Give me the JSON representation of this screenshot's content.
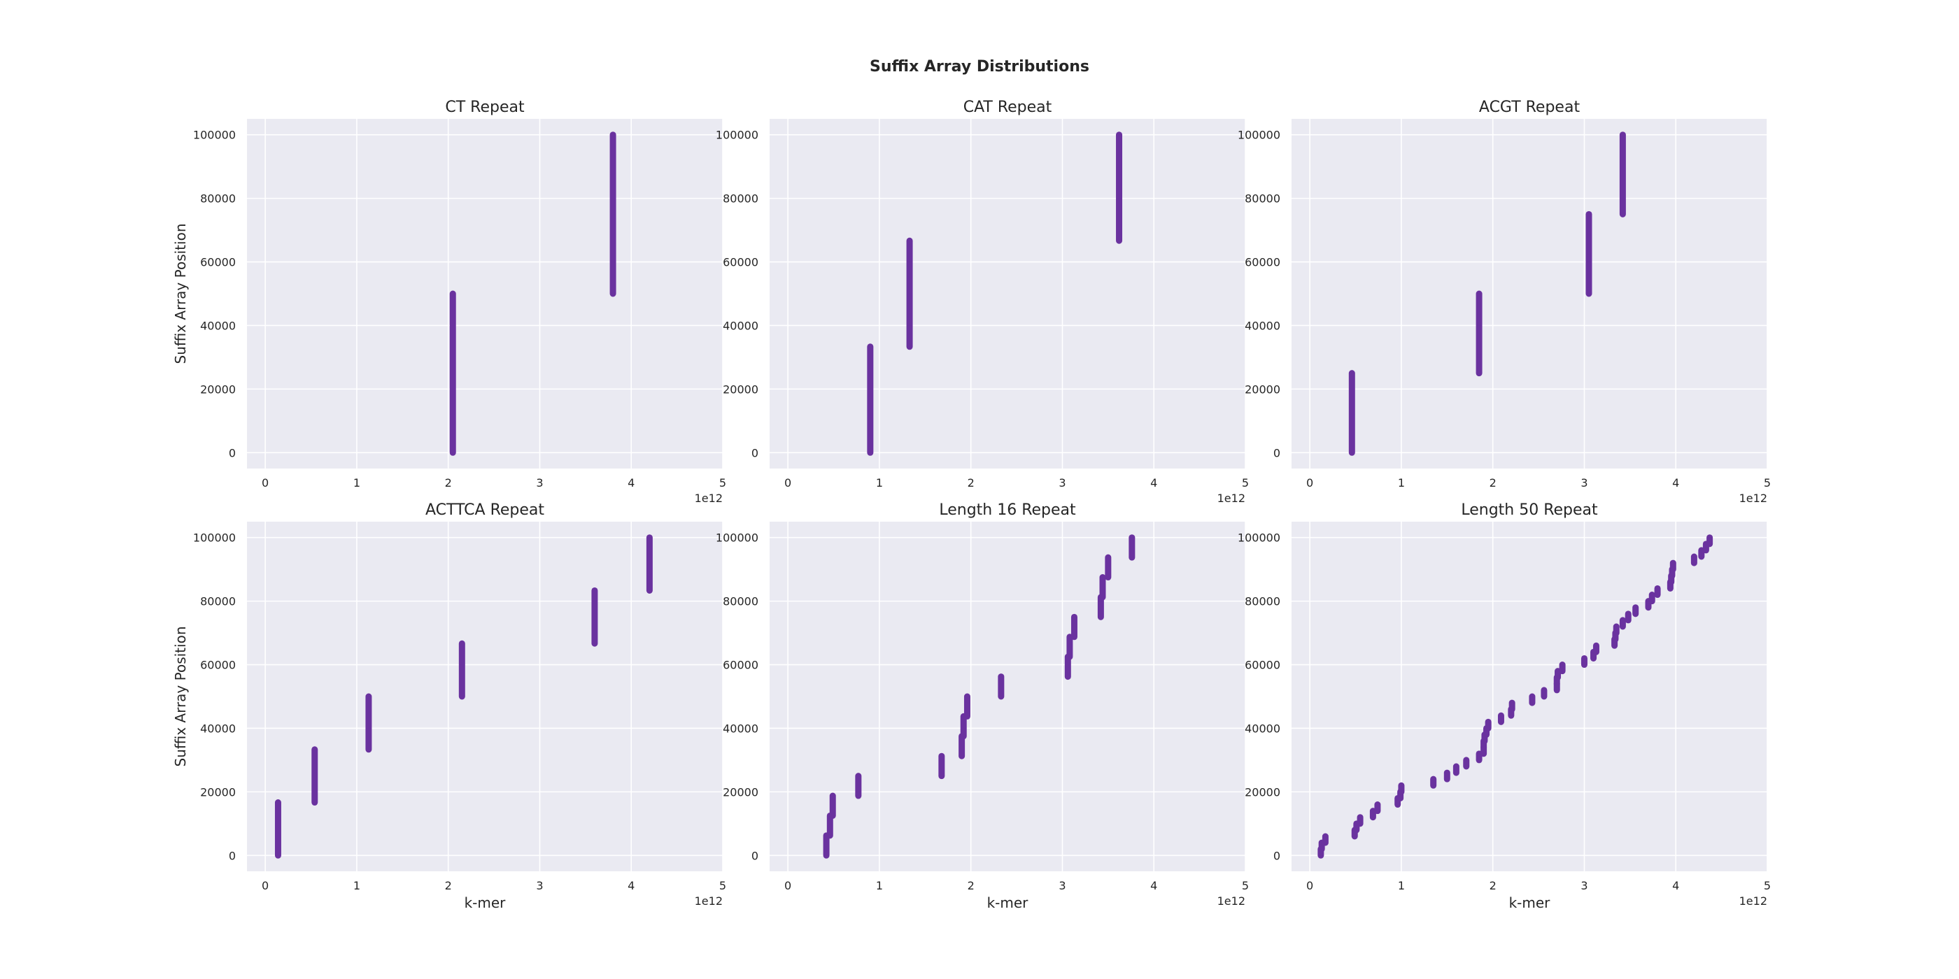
{
  "suptitle": "Suffix Array Distributions",
  "style": {
    "panel_bg": "#EAEAF2",
    "grid_color": "#FFFFFF",
    "mark_color": "#6A329F",
    "text_color": "#262626"
  },
  "chart_data": [
    {
      "type": "scatter",
      "title": "CT Repeat",
      "xlabel": "",
      "ylabel": "Suffix Array Position",
      "xlim": [
        -0.2,
        5
      ],
      "ylim": [
        -5000,
        105000
      ],
      "xticks": [
        "0",
        "1",
        "2",
        "3",
        "4",
        "5"
      ],
      "yticks": [
        "0",
        "20000",
        "40000",
        "60000",
        "80000",
        "100000"
      ],
      "x_offset": "1e12",
      "grid": true,
      "segments": [
        {
          "x": 2.05,
          "y": [
            0,
            50000
          ]
        },
        {
          "x": 3.8,
          "y": [
            50000,
            100000
          ]
        }
      ]
    },
    {
      "type": "scatter",
      "title": "CAT Repeat",
      "xlabel": "",
      "ylabel": "",
      "xlim": [
        -0.2,
        5
      ],
      "ylim": [
        -5000,
        105000
      ],
      "xticks": [
        "0",
        "1",
        "2",
        "3",
        "4",
        "5"
      ],
      "yticks": [
        "0",
        "20000",
        "40000",
        "60000",
        "80000",
        "100000"
      ],
      "x_offset": "1e12",
      "grid": true,
      "segments": [
        {
          "x": 0.9,
          "y": [
            0,
            33333
          ]
        },
        {
          "x": 1.33,
          "y": [
            33333,
            66666
          ]
        },
        {
          "x": 3.62,
          "y": [
            66666,
            100000
          ]
        }
      ]
    },
    {
      "type": "scatter",
      "title": "ACGT Repeat",
      "xlabel": "",
      "ylabel": "",
      "xlim": [
        -0.2,
        5
      ],
      "ylim": [
        -5000,
        105000
      ],
      "xticks": [
        "0",
        "1",
        "2",
        "3",
        "4",
        "5"
      ],
      "yticks": [
        "0",
        "20000",
        "40000",
        "60000",
        "80000",
        "100000"
      ],
      "x_offset": "1e12",
      "grid": true,
      "segments": [
        {
          "x": 0.46,
          "y": [
            0,
            25000
          ]
        },
        {
          "x": 1.85,
          "y": [
            25000,
            50000
          ]
        },
        {
          "x": 3.05,
          "y": [
            50000,
            75000
          ]
        },
        {
          "x": 3.42,
          "y": [
            75000,
            100000
          ]
        }
      ]
    },
    {
      "type": "scatter",
      "title": "ACTTCA Repeat",
      "xlabel": "k-mer",
      "ylabel": "Suffix Array Position",
      "xlim": [
        -0.2,
        5
      ],
      "ylim": [
        -5000,
        105000
      ],
      "xticks": [
        "0",
        "1",
        "2",
        "3",
        "4",
        "5"
      ],
      "yticks": [
        "0",
        "20000",
        "40000",
        "60000",
        "80000",
        "100000"
      ],
      "x_offset": "1e12",
      "grid": true,
      "segments": [
        {
          "x": 0.14,
          "y": [
            0,
            16666
          ]
        },
        {
          "x": 0.54,
          "y": [
            16666,
            33333
          ]
        },
        {
          "x": 1.13,
          "y": [
            33333,
            50000
          ]
        },
        {
          "x": 2.15,
          "y": [
            50000,
            66666
          ]
        },
        {
          "x": 3.6,
          "y": [
            66666,
            83333
          ]
        },
        {
          "x": 4.2,
          "y": [
            83333,
            100000
          ]
        }
      ]
    },
    {
      "type": "scatter",
      "title": "Length 16 Repeat",
      "xlabel": "k-mer",
      "ylabel": "",
      "xlim": [
        -0.2,
        5
      ],
      "ylim": [
        -5000,
        105000
      ],
      "xticks": [
        "0",
        "1",
        "2",
        "3",
        "4",
        "5"
      ],
      "yticks": [
        "0",
        "20000",
        "40000",
        "60000",
        "80000",
        "100000"
      ],
      "x_offset": "1e12",
      "grid": true,
      "segments": [
        {
          "x": 0.42,
          "y": [
            0,
            6250
          ]
        },
        {
          "x": 0.46,
          "y": [
            6250,
            12500
          ]
        },
        {
          "x": 0.49,
          "y": [
            12500,
            18750
          ]
        },
        {
          "x": 0.77,
          "y": [
            18750,
            25000
          ]
        },
        {
          "x": 1.68,
          "y": [
            25000,
            31250
          ]
        },
        {
          "x": 1.9,
          "y": [
            31250,
            37500
          ]
        },
        {
          "x": 1.92,
          "y": [
            37500,
            43750
          ]
        },
        {
          "x": 1.96,
          "y": [
            43750,
            50000
          ]
        },
        {
          "x": 2.33,
          "y": [
            50000,
            56250
          ]
        },
        {
          "x": 3.06,
          "y": [
            56250,
            62500
          ]
        },
        {
          "x": 3.08,
          "y": [
            62500,
            68750
          ]
        },
        {
          "x": 3.13,
          "y": [
            68750,
            75000
          ]
        },
        {
          "x": 3.42,
          "y": [
            75000,
            81250
          ]
        },
        {
          "x": 3.44,
          "y": [
            81250,
            87500
          ]
        },
        {
          "x": 3.5,
          "y": [
            87500,
            93750
          ]
        },
        {
          "x": 3.76,
          "y": [
            93750,
            100000
          ]
        }
      ]
    },
    {
      "type": "scatter",
      "title": "Length 50 Repeat",
      "xlabel": "k-mer",
      "ylabel": "",
      "xlim": [
        -0.2,
        5
      ],
      "ylim": [
        -5000,
        105000
      ],
      "xticks": [
        "0",
        "1",
        "2",
        "3",
        "4",
        "5"
      ],
      "yticks": [
        "0",
        "20000",
        "40000",
        "60000",
        "80000",
        "100000"
      ],
      "x_offset": "1e12",
      "grid": true,
      "segments": [
        {
          "x": 0.12,
          "y": [
            0,
            2000
          ]
        },
        {
          "x": 0.13,
          "y": [
            2000,
            4000
          ]
        },
        {
          "x": 0.17,
          "y": [
            4000,
            6000
          ]
        },
        {
          "x": 0.49,
          "y": [
            6000,
            8000
          ]
        },
        {
          "x": 0.51,
          "y": [
            8000,
            10000
          ]
        },
        {
          "x": 0.55,
          "y": [
            10000,
            12000
          ]
        },
        {
          "x": 0.69,
          "y": [
            12000,
            14000
          ]
        },
        {
          "x": 0.74,
          "y": [
            14000,
            16000
          ]
        },
        {
          "x": 0.96,
          "y": [
            16000,
            18000
          ]
        },
        {
          "x": 0.99,
          "y": [
            18000,
            20000
          ]
        },
        {
          "x": 1.0,
          "y": [
            20000,
            22000
          ]
        },
        {
          "x": 1.35,
          "y": [
            22000,
            24000
          ]
        },
        {
          "x": 1.5,
          "y": [
            24000,
            26000
          ]
        },
        {
          "x": 1.6,
          "y": [
            26000,
            28000
          ]
        },
        {
          "x": 1.71,
          "y": [
            28000,
            30000
          ]
        },
        {
          "x": 1.85,
          "y": [
            30000,
            32000
          ]
        },
        {
          "x": 1.9,
          "y": [
            32000,
            34000
          ]
        },
        {
          "x": 1.9,
          "y": [
            34000,
            36000
          ]
        },
        {
          "x": 1.91,
          "y": [
            36000,
            38000
          ]
        },
        {
          "x": 1.93,
          "y": [
            38000,
            40000
          ]
        },
        {
          "x": 1.95,
          "y": [
            40000,
            42000
          ]
        },
        {
          "x": 2.09,
          "y": [
            42000,
            44000
          ]
        },
        {
          "x": 2.2,
          "y": [
            44000,
            46000
          ]
        },
        {
          "x": 2.21,
          "y": [
            46000,
            48000
          ]
        },
        {
          "x": 2.43,
          "y": [
            48000,
            50000
          ]
        },
        {
          "x": 2.56,
          "y": [
            50000,
            52000
          ]
        },
        {
          "x": 2.7,
          "y": [
            52000,
            54000
          ]
        },
        {
          "x": 2.7,
          "y": [
            54000,
            56000
          ]
        },
        {
          "x": 2.71,
          "y": [
            56000,
            58000
          ]
        },
        {
          "x": 2.76,
          "y": [
            58000,
            60000
          ]
        },
        {
          "x": 3.0,
          "y": [
            60000,
            62000
          ]
        },
        {
          "x": 3.1,
          "y": [
            62000,
            64000
          ]
        },
        {
          "x": 3.13,
          "y": [
            64000,
            66000
          ]
        },
        {
          "x": 3.33,
          "y": [
            66000,
            68000
          ]
        },
        {
          "x": 3.34,
          "y": [
            68000,
            70000
          ]
        },
        {
          "x": 3.35,
          "y": [
            70000,
            72000
          ]
        },
        {
          "x": 3.42,
          "y": [
            72000,
            74000
          ]
        },
        {
          "x": 3.48,
          "y": [
            74000,
            76000
          ]
        },
        {
          "x": 3.56,
          "y": [
            76000,
            78000
          ]
        },
        {
          "x": 3.7,
          "y": [
            78000,
            80000
          ]
        },
        {
          "x": 3.74,
          "y": [
            80000,
            82000
          ]
        },
        {
          "x": 3.8,
          "y": [
            82000,
            84000
          ]
        },
        {
          "x": 3.94,
          "y": [
            84000,
            86000
          ]
        },
        {
          "x": 3.95,
          "y": [
            86000,
            88000
          ]
        },
        {
          "x": 3.96,
          "y": [
            88000,
            90000
          ]
        },
        {
          "x": 3.97,
          "y": [
            90000,
            92000
          ]
        },
        {
          "x": 4.2,
          "y": [
            92000,
            94000
          ]
        },
        {
          "x": 4.28,
          "y": [
            94000,
            96000
          ]
        },
        {
          "x": 4.33,
          "y": [
            96000,
            98000
          ]
        },
        {
          "x": 4.37,
          "y": [
            98000,
            100000
          ]
        }
      ]
    }
  ]
}
